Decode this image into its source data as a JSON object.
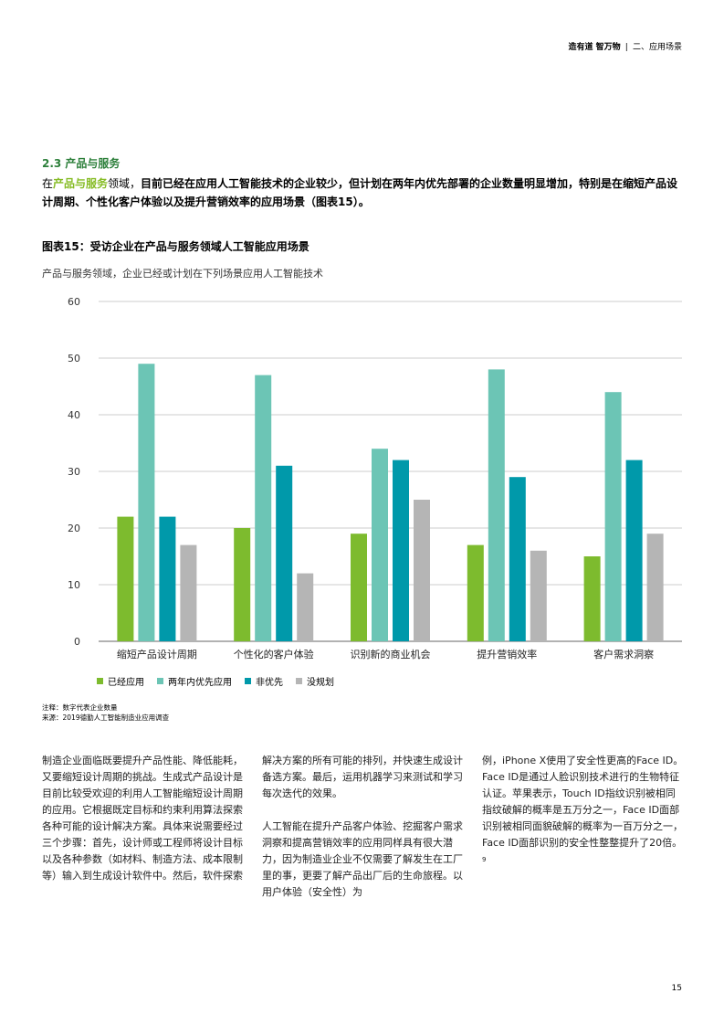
{
  "header": {
    "brand": "造有道 智万物",
    "separator": "|",
    "section": "二、应用场景"
  },
  "section": {
    "title": "2.3 产品与服务",
    "intro_prefix": "在",
    "intro_highlight": "产品与服务",
    "intro_after_highlight": "领域，",
    "intro_bold": "目前已经在应用人工智能技术的企业较少，但计划在两年内优先部署的企业数量明显增加，特别是在缩短产品设计周期、个性化客户体验以及提升营销效率的应用场景（图表15）。"
  },
  "figure": {
    "title": "图表15：受访企业在产品与服务领域人工智能应用场景",
    "subtitle": "产品与服务领域，企业已经或计划在下列场景应用人工智能技术"
  },
  "chart_data": {
    "type": "bar",
    "title": "",
    "xlabel": "",
    "ylabel": "",
    "ylim": [
      0,
      60
    ],
    "yticks": [
      0,
      10,
      20,
      30,
      40,
      50,
      60
    ],
    "grid": true,
    "legend_position": "bottom-left",
    "categories": [
      "缩短产品设计周期",
      "个性化的客户体验",
      "识别新的商业机会",
      "提升营销效率",
      "客户需求洞察"
    ],
    "series": [
      {
        "name": "已经应用",
        "color": "#7dbb2e",
        "values": [
          22,
          20,
          19,
          17,
          15
        ]
      },
      {
        "name": "两年内优先应用",
        "color": "#6cc5b5",
        "values": [
          49,
          47,
          34,
          48,
          44
        ]
      },
      {
        "name": "非优先",
        "color": "#0099aa",
        "values": [
          22,
          31,
          32,
          29,
          32
        ]
      },
      {
        "name": "没规划",
        "color": "#b5b5b5",
        "values": [
          17,
          12,
          25,
          16,
          19
        ]
      }
    ]
  },
  "notes": {
    "note": "注释：数字代表企业数量",
    "source": "来源：2019德勤人工智能制造业应用调查"
  },
  "body": {
    "col1_p1": "制造企业面临既要提升产品性能、降低能耗，又要缩短设计周期的挑战。生成式产品设计是目前比较受欢迎的利用人工智能缩短设计周期的应用。它根据既定目标和约束利用算法探索各种可能的设计解决方案。具体来说需要经过三个步骤：首先，设计师或工程师将设计目标以及各种参数（如材料、制造方法、成本限制等）输入到生成设计软件中。然后，软件探索",
    "col2_p1": "解决方案的所有可能的排列，并快速生成设计备选方案。最后，运用机器学习来测试和学习每次迭代的效果。",
    "col2_p2": "人工智能在提升产品客户体验、挖掘客户需求洞察和提高营销效率的应用同样具有很大潜力，因为制造业企业不仅需要了解发生在工厂里的事，更要了解产品出厂后的生命旅程。以用户体验（安全性）为",
    "col3_p1": "例，iPhone X使用了安全性更高的Face ID。Face ID是通过人脸识别技术进行的生物特征认证。苹果表示，Touch ID指纹识别被相同指纹破解的概率是五万分之一，Face ID面部识别被相同面貌破解的概率为一百万分之一，Face ID面部识别的安全性整整提升了20倍。",
    "col3_footnote": "9"
  },
  "page_number": "15"
}
